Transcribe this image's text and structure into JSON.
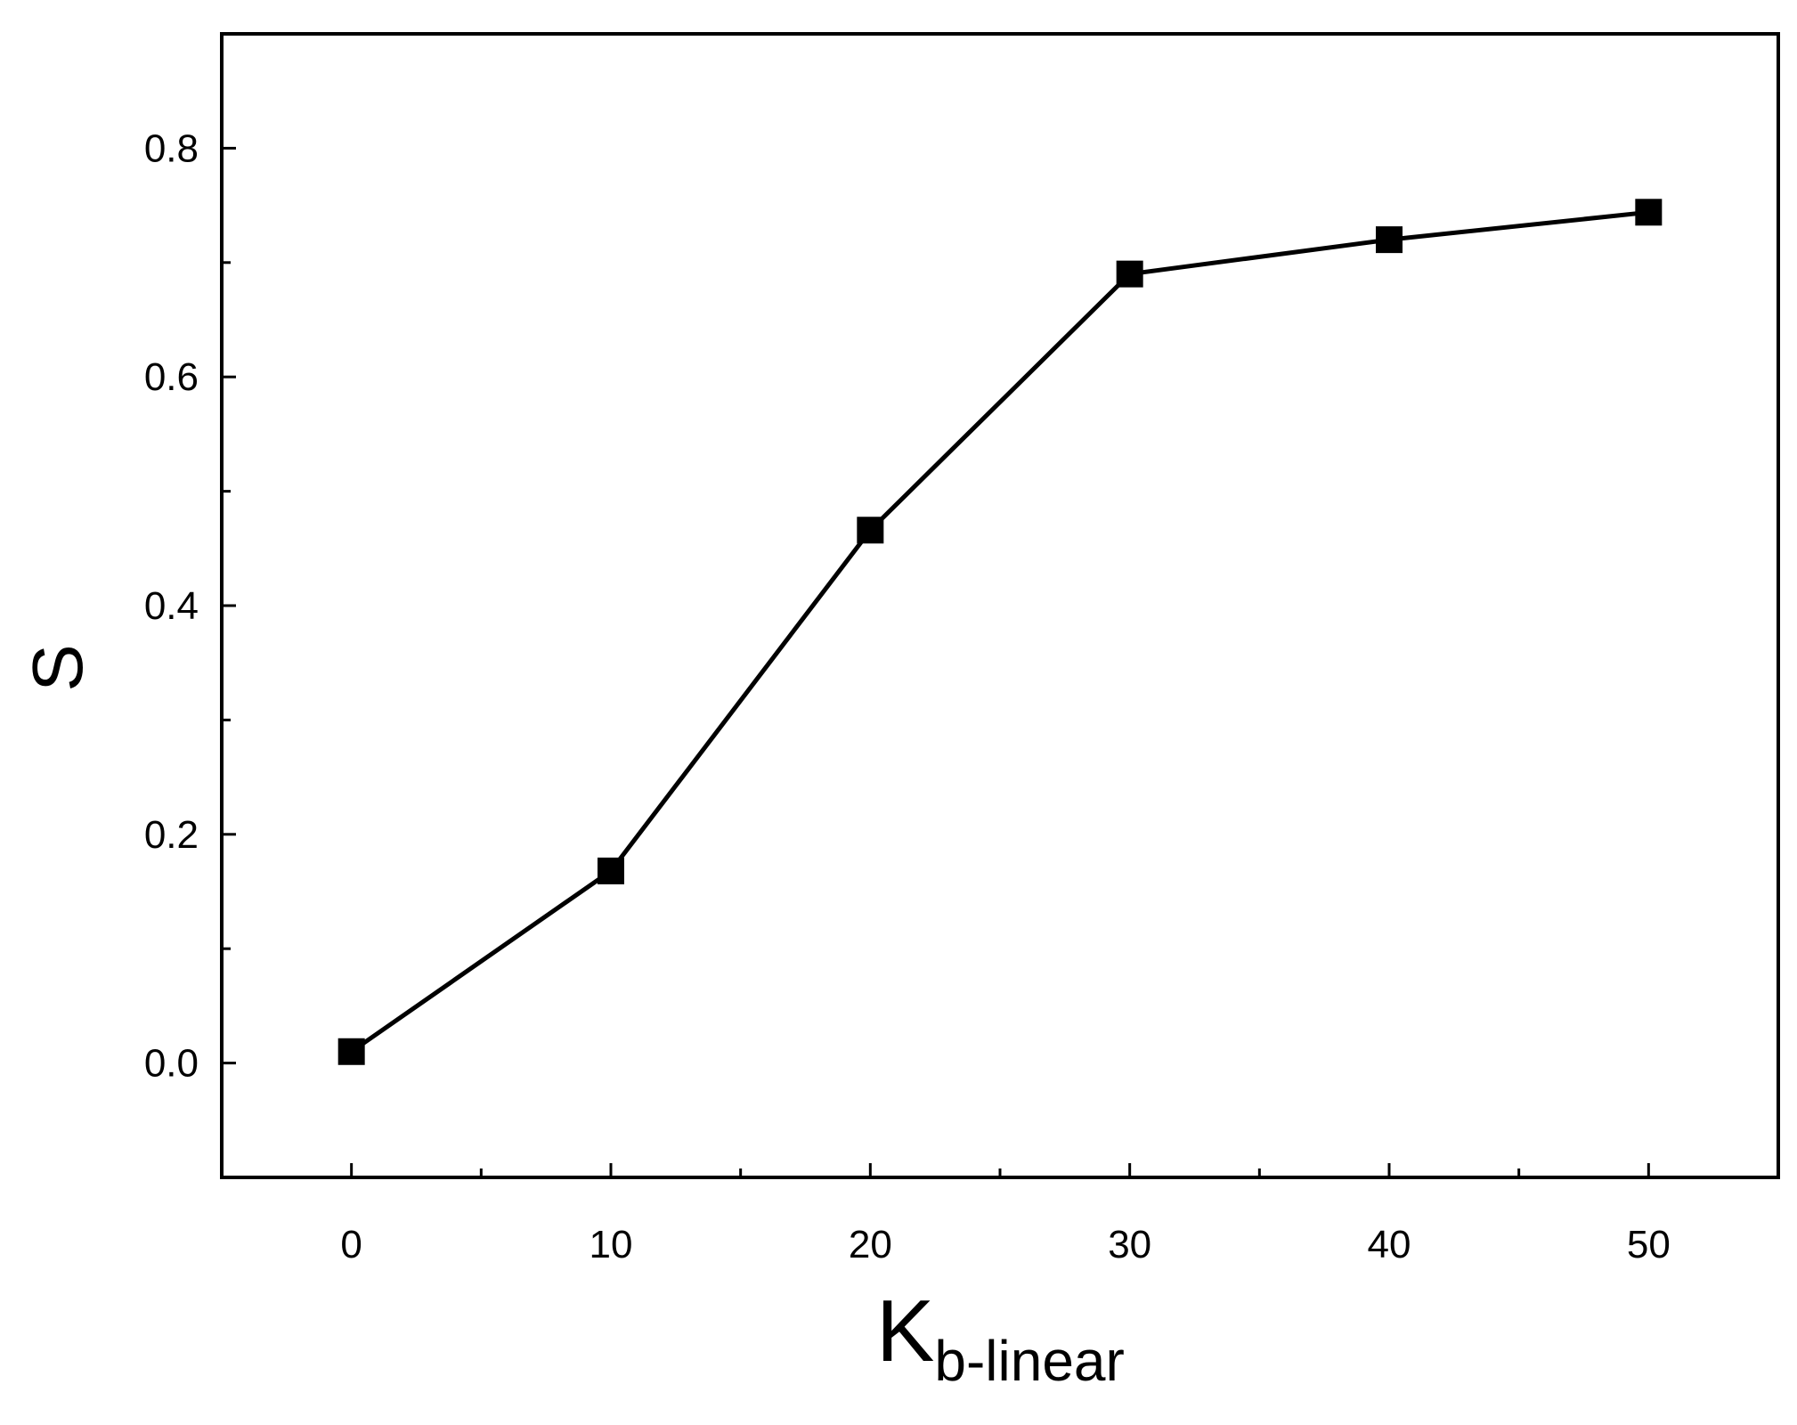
{
  "chart_data": {
    "type": "line",
    "x": [
      0,
      10,
      20,
      30,
      40,
      50
    ],
    "series": [
      {
        "values": [
          0.01,
          0.168,
          0.466,
          0.69,
          0.72,
          0.744
        ],
        "marker": "filled-square",
        "color": "#000000"
      }
    ],
    "xlabel_main": "K",
    "xlabel_sub": "b-linear",
    "ylabel": "S",
    "xlim": [
      -5,
      55
    ],
    "ylim": [
      -0.1,
      0.9
    ],
    "xticks": [
      0,
      10,
      20,
      30,
      40,
      50
    ],
    "xtick_labels": [
      "0",
      "10",
      "20",
      "30",
      "40",
      "50"
    ],
    "xminor": [
      5,
      15,
      25,
      35,
      45
    ],
    "yticks": [
      0.0,
      0.2,
      0.4,
      0.6,
      0.8
    ],
    "ytick_labels": [
      "0.0",
      "0.2",
      "0.4",
      "0.6",
      "0.8"
    ],
    "yminor": [
      0.1,
      0.3,
      0.5,
      0.7
    ],
    "grid": false,
    "legend": "none"
  }
}
